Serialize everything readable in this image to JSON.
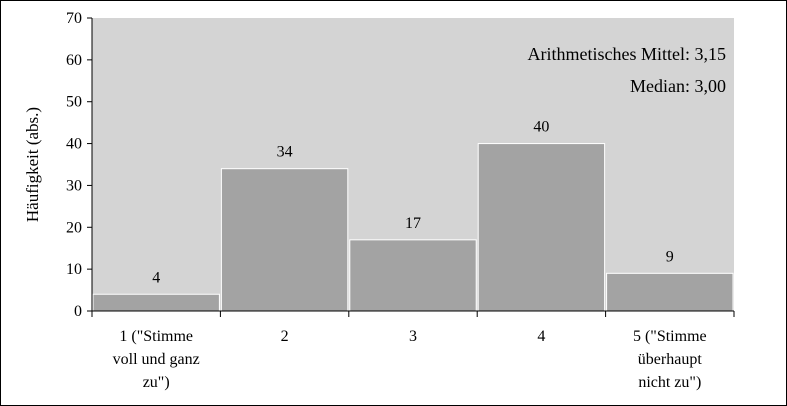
{
  "chart_data": {
    "type": "bar",
    "categories": [
      [
        "1 (\"Stimme",
        "voll und ganz",
        "zu\")"
      ],
      [
        "2"
      ],
      [
        "3"
      ],
      [
        "4"
      ],
      [
        "5 (\"Stimme",
        "überhaupt",
        "nicht zu\")"
      ]
    ],
    "values": [
      4,
      34,
      17,
      40,
      9
    ],
    "ylabel": "Häufigkeit (abs.)",
    "ylim": [
      0,
      70
    ],
    "yticks": [
      0,
      10,
      20,
      30,
      40,
      50,
      60,
      70
    ],
    "grid": false,
    "annotations": [
      "Arithmetisches Mittel: 3,15",
      "Median: 3,00"
    ],
    "colors": {
      "plot_bg": "#d4d4d4",
      "bar": "#a3a3a3",
      "bar_edge": "#ffffff"
    }
  }
}
